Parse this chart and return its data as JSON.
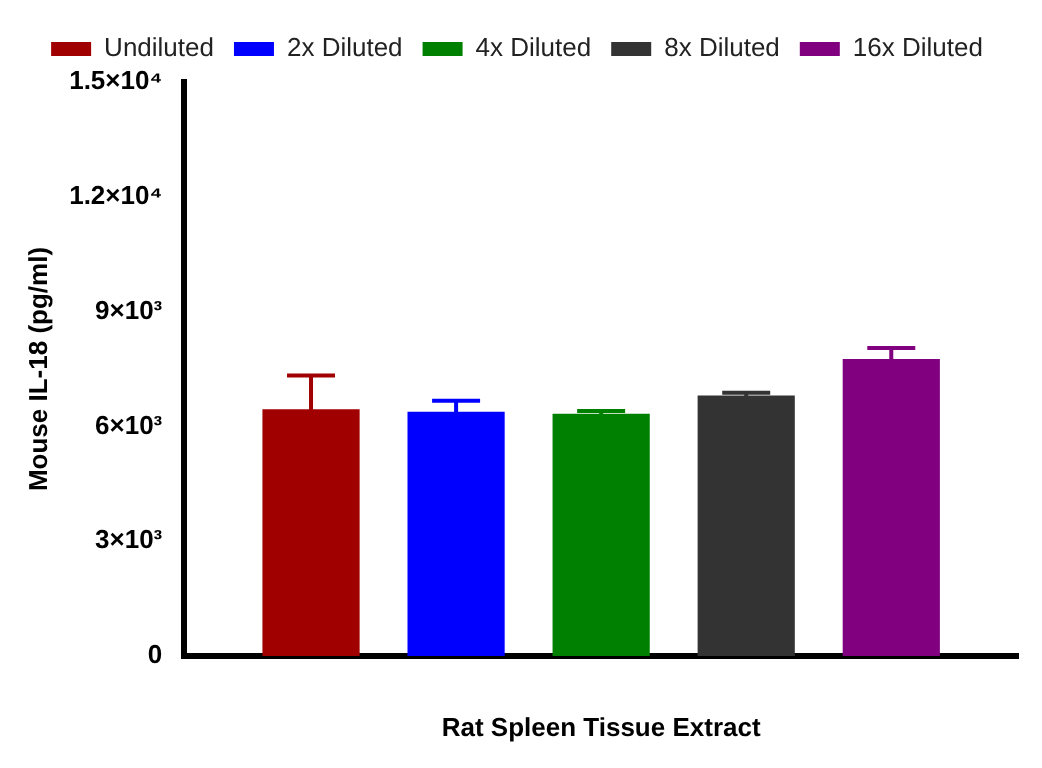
{
  "chart_data": {
    "type": "bar",
    "ylabel": "Mouse IL-18 (pg/ml)",
    "xlabel": "Rat Spleen Tissue Extract",
    "categories": [
      null
    ],
    "series": [
      {
        "name": "Undiluted",
        "color": "#a00000",
        "values": [
          6450
        ],
        "errors": [
          880
        ]
      },
      {
        "name": "2x Diluted",
        "color": "#0000ff",
        "values": [
          6380
        ],
        "errors": [
          290
        ]
      },
      {
        "name": "4x Diluted",
        "color": "#008000",
        "values": [
          6330
        ],
        "errors": [
          70
        ]
      },
      {
        "name": "8x Diluted",
        "color": "#333333",
        "values": [
          6810
        ],
        "errors": [
          70
        ]
      },
      {
        "name": "16x Diluted",
        "color": "#800080",
        "values": [
          7760
        ],
        "errors": [
          290
        ]
      }
    ],
    "ylim": [
      0,
      15000
    ],
    "yticks": [
      0,
      {
        "value": 3000,
        "label": "3×10³"
      },
      {
        "value": 6000,
        "label": "6×10³"
      },
      {
        "value": 9000,
        "label": "9×10³"
      },
      {
        "value": 12000,
        "label": "1.2×10⁴"
      },
      {
        "value": 15000,
        "label": "1.5×10⁴"
      }
    ],
    "grid": false,
    "legend": "top"
  }
}
